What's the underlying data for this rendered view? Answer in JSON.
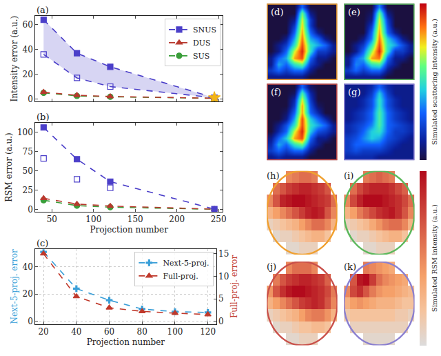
{
  "chart_data": [
    {
      "panel": "(a)",
      "type": "line",
      "y_label": "Intensity error (a.u.)",
      "xlim": [
        30,
        255
      ],
      "xticks": [
        50,
        100,
        150,
        200,
        250
      ],
      "ylim": [
        -2,
        67
      ],
      "yticks": [
        0,
        20,
        40,
        60
      ],
      "tick_labels": "y",
      "legend": "upper right",
      "grid": false,
      "series": [
        {
          "name": "SUS",
          "color": "#3a9e3a",
          "marker": "circle",
          "line_style": "dash",
          "x": [
            40,
            80,
            120,
            245
          ],
          "values": [
            5,
            2.5,
            1.8,
            0.5
          ]
        },
        {
          "name": "DUS",
          "color": "#b8392e",
          "marker": "triangle",
          "line_style": "dash",
          "x": [
            40,
            80,
            120,
            245
          ],
          "values": [
            5.5,
            3,
            2,
            0.6
          ]
        },
        {
          "name": "SNUS",
          "color": "#4b3fc9",
          "marker": "square",
          "line_style": "dash",
          "x": [
            40,
            80,
            120,
            245
          ],
          "values": [
            64,
            37,
            26,
            1
          ]
        },
        {
          "color": "#4b3fc9",
          "marker": "square-open",
          "line_style": "dash",
          "x": [
            40,
            80,
            120,
            245
          ],
          "values": [
            36,
            17,
            10,
            1
          ]
        },
        {
          "color": "#f2b418",
          "marker": "star",
          "line_style": "none",
          "x": [
            245
          ],
          "values": [
            1
          ]
        }
      ]
    },
    {
      "panel": "(b)",
      "type": "line",
      "x_label": "Projection number",
      "y_label": "RSM error (a.u.)",
      "xlim": [
        30,
        255
      ],
      "xticks": [
        50,
        100,
        150,
        200,
        250
      ],
      "ylim": [
        -3,
        112
      ],
      "yticks": [
        0,
        25,
        50,
        75,
        100
      ],
      "grid": false,
      "series": [
        {
          "color": "#3a9e3a",
          "marker": "circle",
          "line_style": "dash",
          "x": [
            40,
            80,
            120,
            245
          ],
          "values": [
            12,
            5,
            3,
            0.3
          ]
        },
        {
          "color": "#b8392e",
          "marker": "triangle",
          "line_style": "dash",
          "x": [
            40,
            80,
            120,
            245
          ],
          "values": [
            14.5,
            7,
            4.5,
            0.4
          ]
        },
        {
          "color": "#4b3fc9",
          "marker": "square",
          "line_style": "dash",
          "x": [
            40,
            80,
            120,
            245
          ],
          "values": [
            106,
            65,
            36,
            0.5
          ]
        },
        {
          "color": "#4b3fc9",
          "marker": "square-open",
          "line_style": "none",
          "x": [
            40,
            80,
            120
          ],
          "values": [
            66,
            39,
            28
          ]
        }
      ]
    },
    {
      "panel": "(c)",
      "type": "line",
      "x_label": "Projection number",
      "y_label": "Next-5-proj. error",
      "y2_label": "Full-proj. error",
      "xlim": [
        15,
        125
      ],
      "xticks": [
        20,
        40,
        60,
        80,
        100,
        120
      ],
      "ylim": [
        -2,
        53
      ],
      "yticks": [
        0,
        20,
        40
      ],
      "y2lim": [
        -0.6,
        16
      ],
      "y2ticks": [
        0,
        5,
        10,
        15
      ],
      "grid": true,
      "legend": "upper right",
      "series": [
        {
          "name": "Next-5-proj.",
          "color": "#3a9fd8",
          "marker": "plus",
          "line_style": "dash",
          "x": [
            20,
            40,
            60,
            80,
            100,
            120
          ],
          "values": [
            51,
            24,
            15.5,
            9,
            7,
            6.5
          ]
        },
        {
          "name": "Full-proj.",
          "color": "#c0392b",
          "marker": "triangle",
          "line_style": "dash",
          "axis": "y2",
          "x": [
            20,
            40,
            60,
            80,
            100,
            120
          ],
          "values": [
            15,
            5.5,
            3,
            2.2,
            1.8,
            1.5
          ]
        }
      ]
    },
    {
      "panel": "(d)",
      "type": "heatmap",
      "color": "#f0a030",
      "tick_labels": false,
      "zlim": [
        0,
        1
      ],
      "colorbar_title": "Simulated scattering intensity (a.u.)",
      "z": [
        [
          0,
          0,
          0,
          0,
          0.3,
          0,
          0,
          0,
          0
        ],
        [
          0,
          0,
          0,
          0,
          0.6,
          0.1,
          0,
          0,
          0
        ],
        [
          0,
          0,
          0,
          0.1,
          0.7,
          0.2,
          0,
          0,
          0
        ],
        [
          0,
          0,
          0,
          0.2,
          0.75,
          0.2,
          0,
          0,
          0
        ],
        [
          0,
          0,
          0,
          0.3,
          0.8,
          0.3,
          0.1,
          0,
          0
        ],
        [
          0,
          0,
          0.1,
          0.4,
          0.85,
          0.4,
          0.3,
          0.1,
          0
        ],
        [
          0,
          0.1,
          0.2,
          0.5,
          0.9,
          0.5,
          0.4,
          0.3,
          0.1
        ],
        [
          0,
          0.1,
          0.3,
          0.7,
          0.95,
          0.5,
          0.2,
          0.2,
          0.1
        ],
        [
          0.1,
          0.3,
          0.4,
          0.8,
          0.9,
          0.3,
          0.1,
          0.1,
          0
        ],
        [
          0.1,
          0.4,
          0.3,
          0.5,
          0.6,
          0.2,
          0.1,
          0,
          0
        ],
        [
          0.2,
          0.3,
          0.2,
          0.3,
          0.3,
          0.1,
          0,
          0,
          0
        ],
        [
          0.1,
          0.1,
          0.1,
          0.1,
          0.1,
          0,
          0,
          0,
          0
        ]
      ]
    },
    {
      "panel": "(e)",
      "type": "heatmap",
      "color": "#5cb85c",
      "tick_labels": false,
      "zlim": [
        0,
        1
      ],
      "z": [
        [
          0,
          0,
          0,
          0,
          0.35,
          0,
          0,
          0,
          0
        ],
        [
          0,
          0,
          0,
          0.05,
          0.6,
          0.1,
          0,
          0,
          0
        ],
        [
          0,
          0,
          0,
          0.1,
          0.7,
          0.2,
          0,
          0,
          0
        ],
        [
          0,
          0,
          0,
          0.2,
          0.75,
          0.25,
          0,
          0,
          0
        ],
        [
          0,
          0,
          0,
          0.3,
          0.8,
          0.3,
          0.1,
          0,
          0
        ],
        [
          0,
          0,
          0.1,
          0.35,
          0.85,
          0.45,
          0.3,
          0.1,
          0
        ],
        [
          0,
          0.1,
          0.2,
          0.5,
          0.9,
          0.5,
          0.4,
          0.25,
          0.1
        ],
        [
          0,
          0.1,
          0.3,
          0.65,
          0.95,
          0.5,
          0.2,
          0.2,
          0.1
        ],
        [
          0.1,
          0.3,
          0.4,
          0.8,
          0.85,
          0.3,
          0.1,
          0.1,
          0
        ],
        [
          0.1,
          0.35,
          0.3,
          0.5,
          0.55,
          0.2,
          0.1,
          0,
          0
        ],
        [
          0.2,
          0.3,
          0.2,
          0.3,
          0.3,
          0.1,
          0,
          0,
          0
        ],
        [
          0.1,
          0.1,
          0.1,
          0.1,
          0.1,
          0,
          0,
          0,
          0
        ]
      ]
    },
    {
      "panel": "(f)",
      "type": "heatmap",
      "color": "#c9504a",
      "tick_labels": false,
      "zlim": [
        0,
        1
      ],
      "z": [
        [
          0,
          0,
          0,
          0,
          0.3,
          0.05,
          0,
          0,
          0
        ],
        [
          0,
          0,
          0,
          0.05,
          0.55,
          0.15,
          0,
          0,
          0
        ],
        [
          0,
          0,
          0,
          0.15,
          0.7,
          0.2,
          0,
          0,
          0
        ],
        [
          0,
          0,
          0,
          0.2,
          0.8,
          0.25,
          0.05,
          0,
          0
        ],
        [
          0,
          0,
          0.05,
          0.3,
          0.8,
          0.3,
          0.15,
          0,
          0
        ],
        [
          0,
          0,
          0.1,
          0.4,
          0.9,
          0.45,
          0.3,
          0.15,
          0
        ],
        [
          0,
          0.1,
          0.25,
          0.5,
          0.9,
          0.5,
          0.4,
          0.3,
          0.1
        ],
        [
          0,
          0.15,
          0.3,
          0.7,
          0.95,
          0.45,
          0.25,
          0.2,
          0.1
        ],
        [
          0.1,
          0.3,
          0.45,
          0.8,
          0.9,
          0.3,
          0.1,
          0.1,
          0
        ],
        [
          0.15,
          0.4,
          0.3,
          0.5,
          0.6,
          0.2,
          0.1,
          0,
          0
        ],
        [
          0.2,
          0.3,
          0.2,
          0.3,
          0.3,
          0.1,
          0,
          0,
          0
        ],
        [
          0.1,
          0.15,
          0.1,
          0.1,
          0.1,
          0,
          0,
          0,
          0
        ]
      ]
    },
    {
      "panel": "(g)",
      "type": "heatmap",
      "color": "#8a7fd0",
      "tick_labels": false,
      "zlim": [
        0,
        1
      ],
      "z": [
        [
          0.1,
          0.1,
          0.1,
          0.15,
          0.3,
          0.15,
          0.1,
          0.1,
          0.1
        ],
        [
          0.1,
          0.1,
          0.1,
          0.2,
          0.45,
          0.2,
          0.1,
          0.1,
          0.1
        ],
        [
          0.1,
          0.1,
          0.15,
          0.25,
          0.5,
          0.25,
          0.15,
          0.1,
          0.1
        ],
        [
          0.1,
          0.1,
          0.15,
          0.25,
          0.5,
          0.25,
          0.15,
          0.1,
          0.1
        ],
        [
          0.1,
          0.15,
          0.2,
          0.3,
          0.55,
          0.3,
          0.2,
          0.15,
          0.1
        ],
        [
          0.1,
          0.15,
          0.2,
          0.3,
          0.55,
          0.3,
          0.2,
          0.15,
          0.1
        ],
        [
          0.15,
          0.2,
          0.25,
          0.35,
          0.55,
          0.3,
          0.25,
          0.2,
          0.15
        ],
        [
          0.15,
          0.2,
          0.3,
          0.45,
          0.5,
          0.3,
          0.2,
          0.2,
          0.15
        ],
        [
          0.2,
          0.25,
          0.35,
          0.45,
          0.4,
          0.25,
          0.2,
          0.15,
          0.1
        ],
        [
          0.2,
          0.3,
          0.3,
          0.3,
          0.3,
          0.2,
          0.15,
          0.1,
          0.1
        ],
        [
          0.2,
          0.25,
          0.2,
          0.2,
          0.2,
          0.15,
          0.1,
          0.1,
          0.1
        ],
        [
          0.15,
          0.15,
          0.15,
          0.15,
          0.1,
          0.1,
          0.1,
          0.1,
          0.1
        ]
      ]
    },
    {
      "panel": "(h)",
      "type": "spheremap",
      "color": "#f0a030",
      "tick_labels": false,
      "zlim": [
        0,
        1
      ],
      "colorbar_title": "Simulated RSM intensity (a.u.)",
      "z": [
        [
          null,
          null,
          null,
          0.5,
          0.55,
          0.6,
          0.6,
          0.55,
          null,
          null,
          null
        ],
        [
          null,
          0.6,
          0.7,
          0.8,
          0.85,
          0.9,
          0.9,
          0.85,
          0.8,
          0.7,
          null
        ],
        [
          0.5,
          0.7,
          0.9,
          0.95,
          1,
          1,
          0.95,
          0.9,
          0.85,
          0.8,
          0.6
        ],
        [
          0.3,
          0.4,
          0.5,
          0.6,
          0.7,
          0.8,
          0.9,
          0.95,
          0.9,
          0.7,
          0.5
        ],
        [
          0.1,
          0.15,
          0.2,
          0.25,
          0.3,
          0.4,
          0.5,
          0.6,
          0.6,
          0.5,
          0.3
        ],
        [
          null,
          0.05,
          0.1,
          0.1,
          0.15,
          0.2,
          0.25,
          0.3,
          0.3,
          0.2,
          null
        ],
        [
          null,
          null,
          null,
          0.05,
          0.05,
          0.1,
          0.1,
          0.1,
          null,
          null,
          null
        ]
      ]
    },
    {
      "panel": "(i)",
      "type": "spheremap",
      "color": "#5cb85c",
      "tick_labels": false,
      "zlim": [
        0,
        1
      ],
      "z": [
        [
          null,
          null,
          null,
          0.55,
          0.6,
          0.65,
          0.6,
          0.55,
          null,
          null,
          null
        ],
        [
          null,
          0.6,
          0.75,
          0.85,
          0.9,
          0.9,
          0.9,
          0.85,
          0.75,
          0.65,
          null
        ],
        [
          0.5,
          0.75,
          0.9,
          1,
          1,
          1,
          0.95,
          0.9,
          0.85,
          0.75,
          0.6
        ],
        [
          0.3,
          0.4,
          0.55,
          0.65,
          0.75,
          0.85,
          0.9,
          0.95,
          0.85,
          0.7,
          0.5
        ],
        [
          0.1,
          0.15,
          0.2,
          0.25,
          0.35,
          0.45,
          0.55,
          0.6,
          0.6,
          0.5,
          0.3
        ],
        [
          null,
          0.05,
          0.1,
          0.1,
          0.15,
          0.2,
          0.25,
          0.3,
          0.3,
          0.2,
          null
        ],
        [
          null,
          null,
          null,
          0.05,
          0.05,
          0.1,
          0.1,
          0.1,
          null,
          null,
          null
        ]
      ]
    },
    {
      "panel": "(j)",
      "type": "spheremap",
      "color": "#c9504a",
      "tick_labels": false,
      "zlim": [
        0,
        1
      ],
      "z": [
        [
          null,
          null,
          null,
          0.5,
          0.6,
          0.6,
          0.6,
          0.5,
          null,
          null,
          null
        ],
        [
          null,
          0.55,
          0.7,
          0.8,
          0.85,
          0.9,
          0.9,
          0.85,
          0.8,
          0.65,
          null
        ],
        [
          0.45,
          0.7,
          0.85,
          0.95,
          1,
          1,
          0.95,
          0.9,
          0.85,
          0.75,
          0.55
        ],
        [
          0.3,
          0.4,
          0.5,
          0.6,
          0.7,
          0.8,
          0.85,
          0.9,
          0.85,
          0.7,
          0.5
        ],
        [
          0.1,
          0.15,
          0.2,
          0.25,
          0.3,
          0.4,
          0.5,
          0.55,
          0.55,
          0.45,
          0.3
        ],
        [
          null,
          0.05,
          0.1,
          0.1,
          0.15,
          0.2,
          0.2,
          0.25,
          0.25,
          0.2,
          null
        ],
        [
          null,
          null,
          null,
          0.05,
          0.05,
          0.1,
          0.1,
          0.1,
          null,
          null,
          null
        ]
      ]
    },
    {
      "panel": "(k)",
      "type": "spheremap",
      "color": "#8a7fd0",
      "tick_labels": false,
      "zlim": [
        0,
        1
      ],
      "z": [
        [
          null,
          null,
          null,
          0.55,
          0.5,
          0.45,
          0.4,
          0.35,
          null,
          null,
          null
        ],
        [
          null,
          0.7,
          0.95,
          1,
          0.8,
          0.6,
          0.5,
          0.45,
          0.4,
          0.35,
          null
        ],
        [
          0.5,
          0.75,
          0.85,
          0.7,
          0.55,
          0.45,
          0.4,
          0.4,
          0.35,
          0.3,
          0.25
        ],
        [
          0.3,
          0.4,
          0.45,
          0.4,
          0.35,
          0.3,
          0.3,
          0.3,
          0.25,
          0.2,
          0.2
        ],
        [
          0.15,
          0.2,
          0.2,
          0.2,
          0.2,
          0.2,
          0.2,
          0.2,
          0.15,
          0.15,
          0.1
        ],
        [
          null,
          0.1,
          0.1,
          0.1,
          0.1,
          0.1,
          0.1,
          0.1,
          0.1,
          0.1,
          null
        ],
        [
          null,
          null,
          null,
          0.05,
          0.05,
          0.05,
          0.05,
          0.05,
          null,
          null,
          null
        ]
      ]
    }
  ]
}
